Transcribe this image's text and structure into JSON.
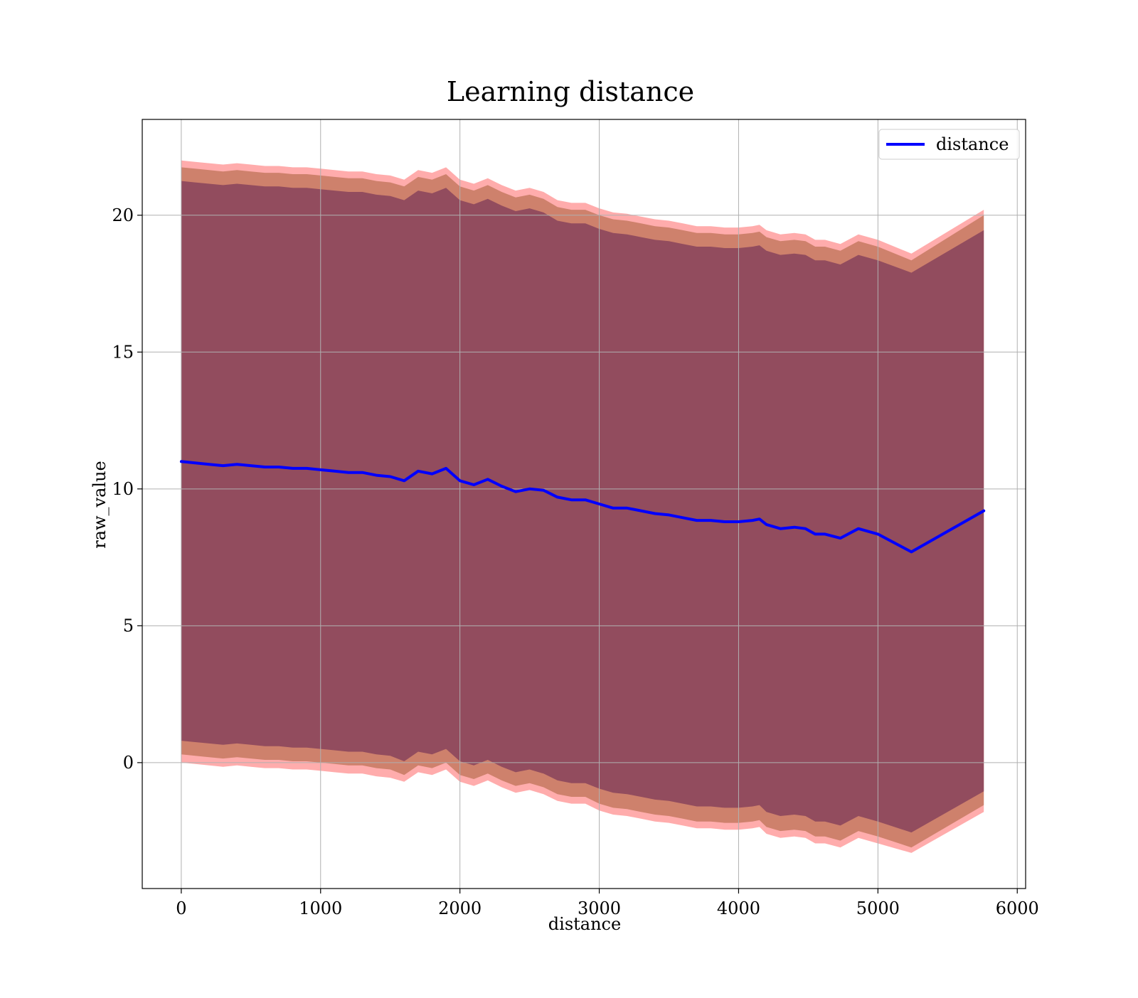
{
  "chart_data": {
    "type": "line",
    "title": "Learning distance",
    "xlabel": "distance",
    "ylabel": "raw_value",
    "xlim": [
      -280,
      6060
    ],
    "ylim": [
      -4.6,
      23.5
    ],
    "xticks": [
      0,
      1000,
      2000,
      3000,
      4000,
      5000,
      6000
    ],
    "yticks": [
      0,
      5,
      10,
      15,
      20
    ],
    "grid": true,
    "legend_position": "top-right",
    "x": [
      0,
      100,
      200,
      300,
      400,
      500,
      600,
      700,
      800,
      900,
      1000,
      1100,
      1200,
      1300,
      1400,
      1500,
      1600,
      1700,
      1800,
      1900,
      2000,
      2100,
      2200,
      2300,
      2400,
      2500,
      2600,
      2700,
      2800,
      2900,
      3000,
      3100,
      3200,
      3300,
      3400,
      3500,
      3600,
      3700,
      3800,
      3900,
      4000,
      4100,
      4150,
      4200,
      4300,
      4400,
      4480,
      4550,
      4620,
      4730,
      4860,
      5000,
      5240,
      5760
    ],
    "series": [
      {
        "name": "distance",
        "color": "#0000ff",
        "values": [
          11.0,
          10.95,
          10.9,
          10.85,
          10.9,
          10.85,
          10.8,
          10.8,
          10.75,
          10.75,
          10.7,
          10.65,
          10.6,
          10.6,
          10.5,
          10.45,
          10.3,
          10.65,
          10.55,
          10.75,
          10.3,
          10.15,
          10.35,
          10.1,
          9.9,
          10.0,
          9.95,
          9.7,
          9.6,
          9.6,
          9.45,
          9.3,
          9.3,
          9.2,
          9.1,
          9.05,
          8.95,
          8.85,
          8.85,
          8.8,
          8.8,
          8.85,
          8.9,
          8.7,
          8.55,
          8.6,
          8.55,
          8.35,
          8.35,
          8.2,
          8.55,
          8.35,
          7.7,
          9.2
        ]
      }
    ],
    "bands": [
      {
        "color": "#ff5a5a",
        "opacity": 0.5,
        "upper": [
          22.0,
          21.95,
          21.9,
          21.85,
          21.9,
          21.85,
          21.8,
          21.8,
          21.75,
          21.75,
          21.7,
          21.65,
          21.6,
          21.6,
          21.5,
          21.45,
          21.3,
          21.65,
          21.55,
          21.75,
          21.3,
          21.15,
          21.35,
          21.1,
          20.9,
          21.0,
          20.85,
          20.55,
          20.45,
          20.45,
          20.25,
          20.1,
          20.05,
          19.95,
          19.85,
          19.8,
          19.7,
          19.6,
          19.6,
          19.55,
          19.55,
          19.6,
          19.65,
          19.45,
          19.3,
          19.35,
          19.3,
          19.1,
          19.1,
          18.95,
          19.3,
          19.1,
          18.6,
          20.2
        ],
        "lower": [
          0.0,
          -0.05,
          -0.1,
          -0.15,
          -0.1,
          -0.15,
          -0.2,
          -0.2,
          -0.25,
          -0.25,
          -0.3,
          -0.35,
          -0.4,
          -0.4,
          -0.5,
          -0.55,
          -0.7,
          -0.35,
          -0.45,
          -0.25,
          -0.7,
          -0.85,
          -0.65,
          -0.9,
          -1.1,
          -1.0,
          -1.15,
          -1.4,
          -1.5,
          -1.5,
          -1.75,
          -1.9,
          -1.95,
          -2.05,
          -2.15,
          -2.2,
          -2.3,
          -2.4,
          -2.4,
          -2.45,
          -2.45,
          -2.4,
          -2.35,
          -2.6,
          -2.75,
          -2.7,
          -2.75,
          -2.95,
          -2.95,
          -3.1,
          -2.75,
          -2.95,
          -3.3,
          -1.8
        ]
      },
      {
        "color": "#8b4513",
        "opacity": 0.42,
        "upper": [
          21.75,
          21.7,
          21.65,
          21.6,
          21.65,
          21.6,
          21.55,
          21.55,
          21.5,
          21.5,
          21.45,
          21.4,
          21.35,
          21.35,
          21.25,
          21.2,
          21.05,
          21.4,
          21.3,
          21.5,
          21.05,
          20.9,
          21.1,
          20.85,
          20.65,
          20.75,
          20.6,
          20.3,
          20.2,
          20.2,
          20.0,
          19.85,
          19.8,
          19.7,
          19.6,
          19.55,
          19.45,
          19.35,
          19.35,
          19.3,
          19.3,
          19.35,
          19.4,
          19.2,
          19.05,
          19.1,
          19.05,
          18.85,
          18.85,
          18.7,
          19.05,
          18.85,
          18.35,
          20.0
        ],
        "lower": [
          0.3,
          0.25,
          0.2,
          0.15,
          0.2,
          0.15,
          0.1,
          0.1,
          0.05,
          0.05,
          0.0,
          -0.05,
          -0.1,
          -0.1,
          -0.2,
          -0.25,
          -0.45,
          -0.1,
          -0.2,
          0.0,
          -0.45,
          -0.6,
          -0.4,
          -0.65,
          -0.85,
          -0.75,
          -0.9,
          -1.15,
          -1.25,
          -1.25,
          -1.5,
          -1.65,
          -1.7,
          -1.8,
          -1.9,
          -1.95,
          -2.05,
          -2.15,
          -2.15,
          -2.2,
          -2.2,
          -2.15,
          -2.1,
          -2.35,
          -2.5,
          -2.45,
          -2.5,
          -2.7,
          -2.7,
          -2.85,
          -2.5,
          -2.7,
          -3.1,
          -1.55
        ]
      },
      {
        "color": "#6a2a55",
        "opacity": 0.6,
        "upper": [
          21.25,
          21.2,
          21.15,
          21.1,
          21.15,
          21.1,
          21.05,
          21.05,
          21.0,
          21.0,
          20.95,
          20.9,
          20.85,
          20.85,
          20.75,
          20.7,
          20.55,
          20.9,
          20.8,
          21.0,
          20.55,
          20.4,
          20.6,
          20.35,
          20.15,
          20.25,
          20.1,
          19.8,
          19.7,
          19.7,
          19.5,
          19.35,
          19.3,
          19.2,
          19.1,
          19.05,
          18.95,
          18.85,
          18.85,
          18.8,
          18.8,
          18.85,
          18.9,
          18.7,
          18.55,
          18.6,
          18.55,
          18.35,
          18.35,
          18.2,
          18.55,
          18.35,
          17.9,
          19.45
        ],
        "lower": [
          0.8,
          0.75,
          0.7,
          0.65,
          0.7,
          0.65,
          0.6,
          0.6,
          0.55,
          0.55,
          0.5,
          0.45,
          0.4,
          0.4,
          0.3,
          0.25,
          0.05,
          0.4,
          0.3,
          0.5,
          0.05,
          -0.1,
          0.1,
          -0.15,
          -0.35,
          -0.25,
          -0.4,
          -0.65,
          -0.75,
          -0.75,
          -0.95,
          -1.1,
          -1.15,
          -1.25,
          -1.35,
          -1.4,
          -1.5,
          -1.6,
          -1.6,
          -1.65,
          -1.65,
          -1.6,
          -1.55,
          -1.8,
          -1.95,
          -1.9,
          -1.95,
          -2.15,
          -2.15,
          -2.3,
          -1.95,
          -2.15,
          -2.55,
          -1.05
        ]
      }
    ]
  }
}
